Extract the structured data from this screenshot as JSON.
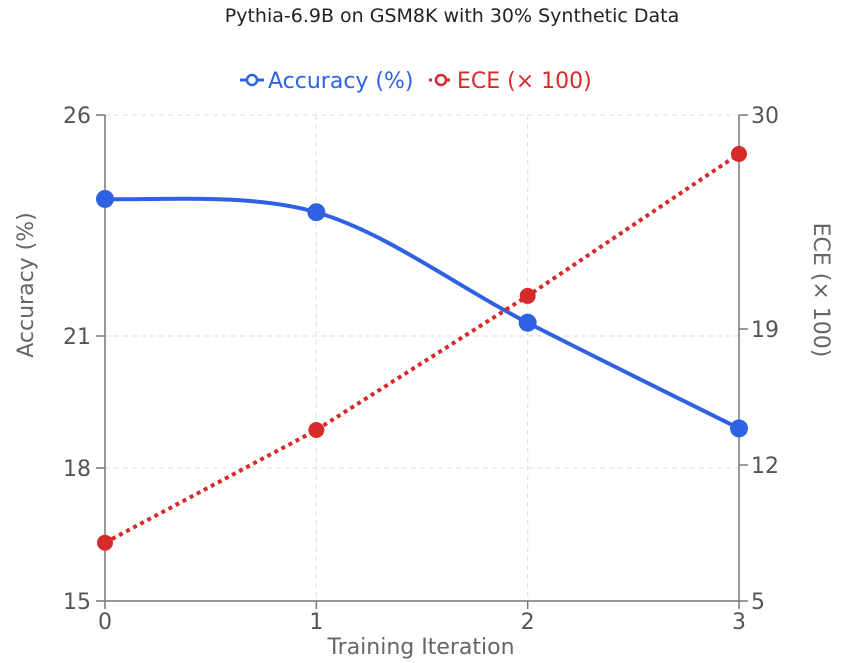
{
  "chart_data": {
    "type": "line",
    "title": "Pythia-6.9B on GSM8K with 30% Synthetic Data",
    "xlabel": "Training Iteration",
    "ylabel_left": "Accuracy (%)",
    "ylabel_right": "ECE (× 100)",
    "x": [
      0,
      1,
      2,
      3
    ],
    "x_ticks": [
      "0",
      "1",
      "2",
      "3"
    ],
    "y_left_ticks": [
      "15",
      "18",
      "21",
      "26"
    ],
    "y_left_tick_values": [
      15,
      18,
      21,
      26
    ],
    "y_right_ticks": [
      "5",
      "12",
      "19",
      "30"
    ],
    "y_right_tick_values": [
      5,
      12,
      19,
      30
    ],
    "grid": true,
    "legend_position": "top-center",
    "series": [
      {
        "name": "Accuracy (%)",
        "axis": "left",
        "values": [
          24.1,
          23.8,
          21.3,
          18.9
        ],
        "color": "#2f62e3",
        "style": "solid"
      },
      {
        "name": "ECE (× 100)",
        "axis": "right",
        "values": [
          8.0,
          13.8,
          20.7,
          28.0
        ],
        "color": "#d62b2b",
        "style": "dotted"
      }
    ]
  }
}
